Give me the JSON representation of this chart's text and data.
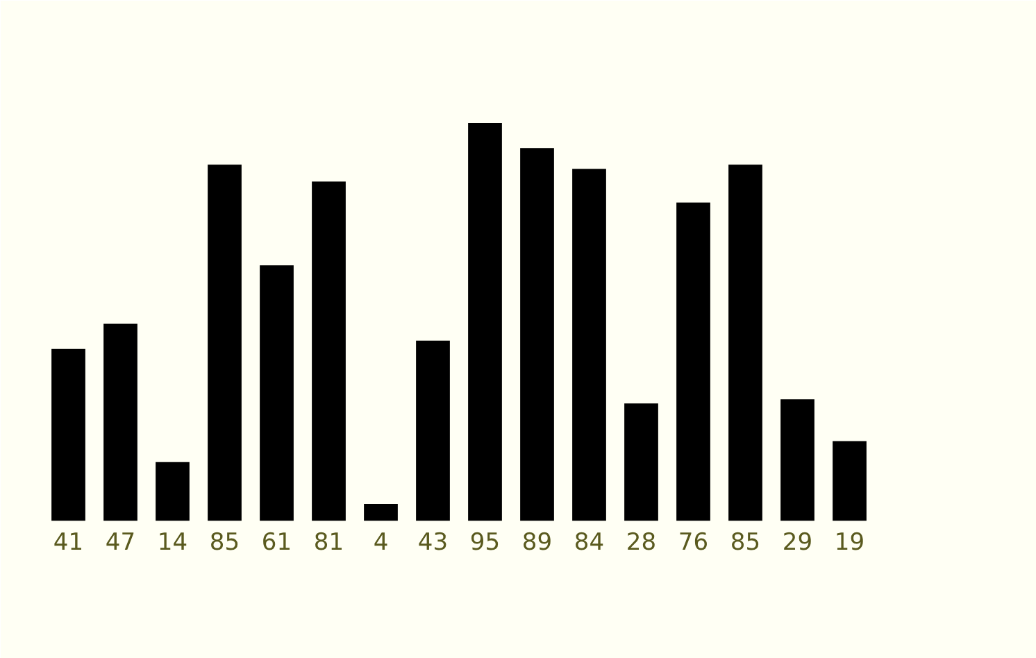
{
  "chart_data": {
    "type": "bar",
    "categories": [
      null,
      null,
      null,
      null,
      null,
      null,
      null,
      null,
      null,
      null,
      null,
      null,
      null,
      null,
      null,
      null
    ],
    "values": [
      41,
      47,
      14,
      85,
      61,
      81,
      4,
      43,
      95,
      89,
      84,
      28,
      76,
      85,
      29,
      19
    ],
    "color": "#000000",
    "data_labels": true,
    "grid": false
  }
}
